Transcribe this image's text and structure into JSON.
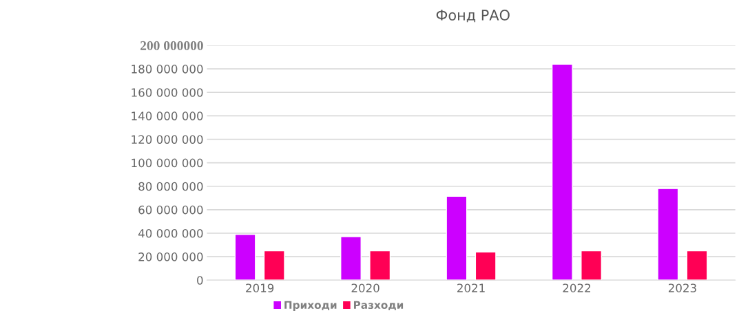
{
  "chart_data": {
    "type": "bar",
    "title": "Фонд РАО",
    "categories": [
      "2019",
      "2020",
      "2021",
      "2022",
      "2023"
    ],
    "series": [
      {
        "name": "Приходи",
        "color": "#cc00ff",
        "values": [
          39000000,
          37000000,
          71500000,
          184000000,
          78000000
        ]
      },
      {
        "name": "Разходи",
        "color": "#ff0055",
        "values": [
          25000000,
          25000000,
          24000000,
          25000000,
          25000000
        ]
      }
    ],
    "ylim": [
      0,
      200000000
    ],
    "yticks": [
      0,
      {
        "value": 20000000,
        "label": "20 000 000"
      },
      {
        "value": 40000000,
        "label": "40 000 000"
      },
      {
        "value": 60000000,
        "label": "60 000 000"
      },
      {
        "value": 80000000,
        "label": "80 000 000"
      },
      {
        "value": 100000000,
        "label": "100 000 000"
      },
      {
        "value": 120000000,
        "label": "120 000 000"
      },
      {
        "value": 140000000,
        "label": "140 000 000"
      },
      {
        "value": 160000000,
        "label": "160 000 000"
      },
      {
        "value": 180000000,
        "label": "180 000 000"
      },
      {
        "value": 200000000,
        "label": "200 000000"
      }
    ],
    "grid": "y",
    "legend": "bottom"
  }
}
